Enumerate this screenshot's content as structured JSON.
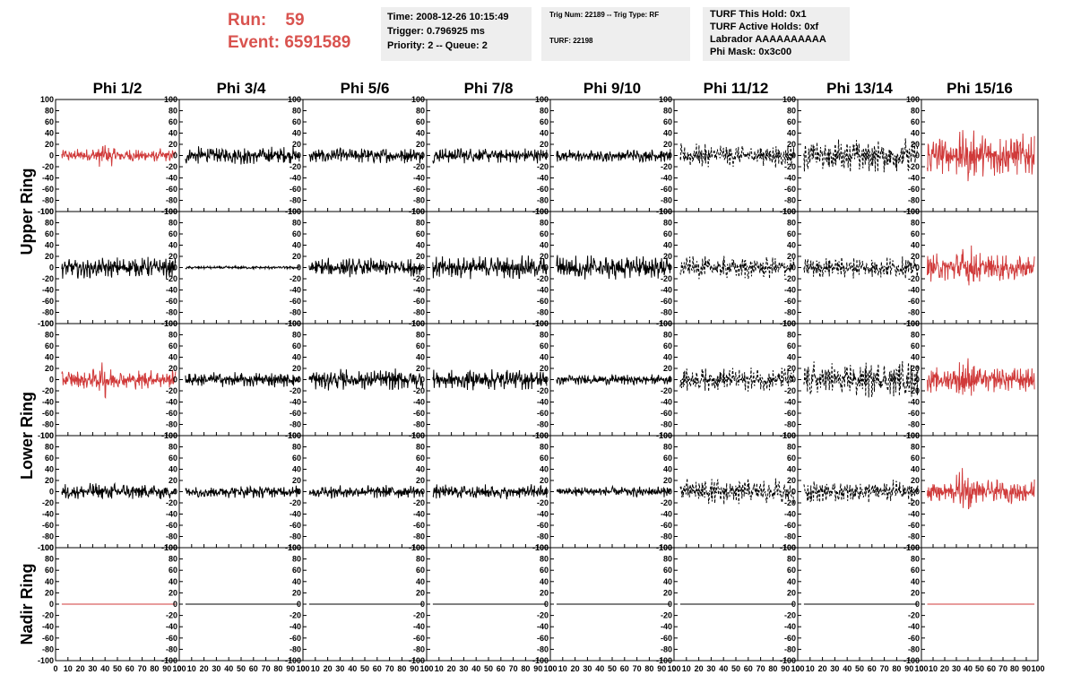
{
  "header": {
    "run_label": "Run:",
    "run_value": "59",
    "event_label": "Event:",
    "event_value": "6591589",
    "time": "Time: 2008-12-26 10:15:49",
    "trigger": "Trigger: 0.796925 ms",
    "priority": "Priority: 2 -- Queue: 2",
    "trig_num": "Trig Num: 22189 -- Trig Type: RF",
    "turf": "TURF: 22198",
    "turf_this_hold": "TURF This Hold: 0x1",
    "turf_active_holds": "TURF Active Holds: 0xf",
    "labrador": "Labrador AAAAAAAAAA",
    "phi_mask": "Phi Mask: 0x3c00"
  },
  "colors": {
    "highlight": "#d03a3a",
    "normal": "#000000",
    "accent_text": "#d9534f"
  },
  "chart_data": {
    "type": "line",
    "columns": [
      "Phi 1/2",
      "Phi 3/4",
      "Phi 5/6",
      "Phi 7/8",
      "Phi 9/10",
      "Phi 11/12",
      "Phi 13/14",
      "Phi 15/16"
    ],
    "rows": [
      "Upper Ring",
      "Lower Ring",
      "Nadir Ring"
    ],
    "xlim": [
      0,
      100
    ],
    "ylim": [
      -100,
      100
    ],
    "y_ticks": [
      100,
      80,
      60,
      40,
      20,
      0,
      -20,
      -40,
      -60,
      -80,
      -100
    ],
    "y_tick_labels": [
      "100",
      "80",
      "60",
      "40",
      "20",
      "0",
      "-20",
      "-40",
      "-60",
      "-80",
      "-100"
    ],
    "x_ticks": [
      0,
      10,
      20,
      30,
      40,
      50,
      60,
      70,
      80,
      90,
      100
    ],
    "x_tick_labels": [
      "0",
      "10",
      "20",
      "30",
      "40",
      "50",
      "60",
      "70",
      "80",
      "90",
      "100"
    ],
    "panels": [
      [
        {
          "amp": 13,
          "style": "red",
          "spike": [
            40,
            30
          ]
        },
        {
          "amp": 17,
          "style": "solid"
        },
        {
          "amp": 15,
          "style": "solid"
        },
        {
          "amp": 15,
          "style": "solid"
        },
        {
          "amp": 12,
          "style": "solid"
        },
        {
          "amp": 22,
          "style": "dashed"
        },
        {
          "amp": 32,
          "style": "dashed"
        },
        {
          "amp": 40,
          "style": "red",
          "spike": [
            40,
            55
          ]
        }
      ],
      [
        {
          "amp": 20,
          "style": "solid"
        },
        {
          "amp": 3,
          "style": "solid"
        },
        {
          "amp": 18,
          "style": "solid"
        },
        {
          "amp": 22,
          "style": "solid"
        },
        {
          "amp": 24,
          "style": "solid"
        },
        {
          "amp": 22,
          "style": "dashed"
        },
        {
          "amp": 20,
          "style": "dashed"
        },
        {
          "amp": 26,
          "style": "red",
          "spike": [
            40,
            55
          ]
        }
      ],
      [
        {
          "amp": 18,
          "style": "red",
          "spike": [
            40,
            40
          ]
        },
        {
          "amp": 14,
          "style": "solid"
        },
        {
          "amp": 20,
          "style": "solid"
        },
        {
          "amp": 20,
          "style": "solid"
        },
        {
          "amp": 10,
          "style": "solid"
        },
        {
          "amp": 22,
          "style": "dashed"
        },
        {
          "amp": 35,
          "style": "dashed"
        },
        {
          "amp": 24,
          "style": "red",
          "spike": [
            38,
            55
          ]
        }
      ],
      [
        {
          "amp": 16,
          "style": "solid"
        },
        {
          "amp": 12,
          "style": "solid"
        },
        {
          "amp": 13,
          "style": "solid"
        },
        {
          "amp": 14,
          "style": "solid"
        },
        {
          "amp": 10,
          "style": "solid"
        },
        {
          "amp": 25,
          "style": "dashed"
        },
        {
          "amp": 22,
          "style": "dashed"
        },
        {
          "amp": 22,
          "style": "red",
          "spike": [
            38,
            60
          ]
        }
      ],
      [
        {
          "amp": 0,
          "style": "red"
        },
        {
          "amp": 0,
          "style": "solid"
        },
        {
          "amp": 0,
          "style": "solid"
        },
        {
          "amp": 0,
          "style": "solid"
        },
        {
          "amp": 0,
          "style": "solid"
        },
        {
          "amp": 0,
          "style": "solid"
        },
        {
          "amp": 0,
          "style": "solid"
        },
        {
          "amp": 0,
          "style": "red"
        }
      ]
    ]
  }
}
